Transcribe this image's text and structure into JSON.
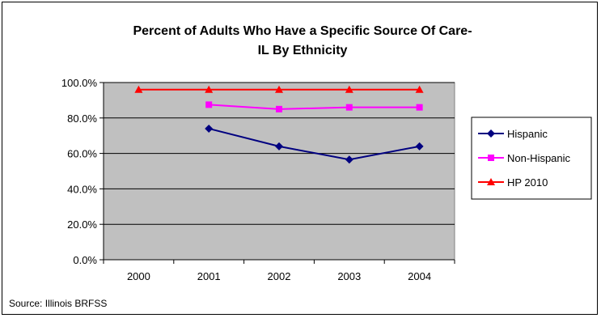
{
  "chart_data": {
    "type": "line",
    "title_lines": [
      "Percent of Adults Who Have a Specific Source Of Care-",
      "IL By Ethnicity"
    ],
    "categories": [
      "2000",
      "2001",
      "2002",
      "2003",
      "2004"
    ],
    "ylim": [
      0,
      100
    ],
    "yticks": [
      0,
      20,
      40,
      60,
      80,
      100
    ],
    "ytick_labels": [
      "0.0%",
      "20.0%",
      "40.0%",
      "60.0%",
      "80.0%",
      "100.0%"
    ],
    "grid": "horizontal",
    "legend_position": "right",
    "plot_background": "#C0C0C0",
    "series": [
      {
        "name": "Hispanic",
        "color": "#000080",
        "marker": "diamond",
        "values": [
          null,
          74.0,
          64.0,
          56.5,
          64.0
        ]
      },
      {
        "name": "Non-Hispanic",
        "color": "#FF00FF",
        "marker": "square",
        "values": [
          null,
          87.5,
          85.0,
          86.0,
          86.0
        ]
      },
      {
        "name": "HP 2010",
        "color": "#FF0000",
        "marker": "triangle",
        "values": [
          96.0,
          96.0,
          96.0,
          96.0,
          96.0
        ]
      }
    ]
  },
  "source": "Source: Illinois BRFSS"
}
